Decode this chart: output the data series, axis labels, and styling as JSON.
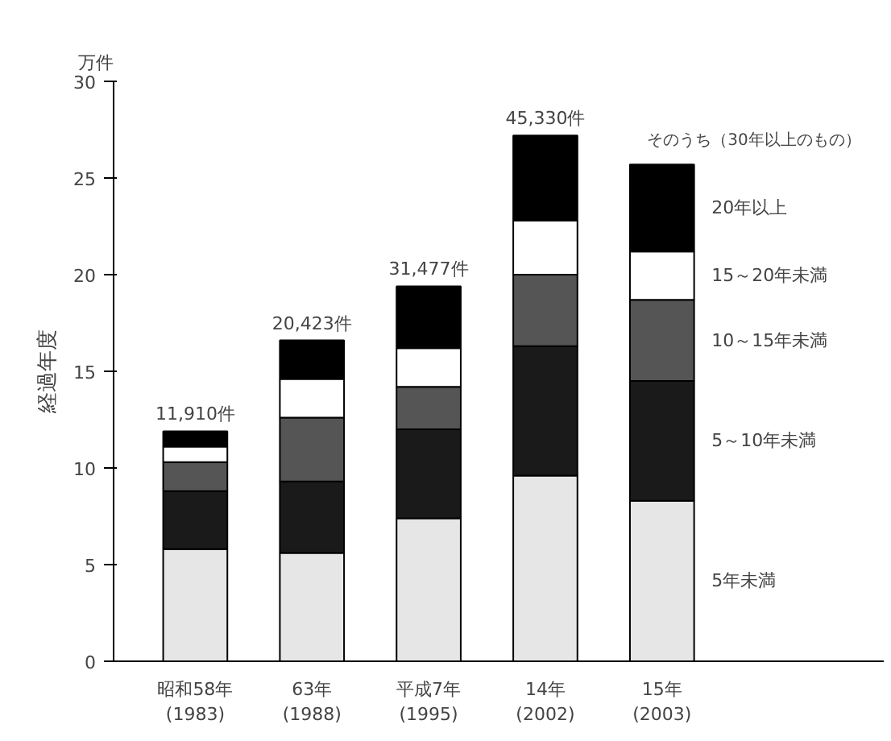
{
  "chart_data": {
    "type": "bar",
    "stacked": true,
    "ylabel": "経過年度",
    "annotations": [
      "万件",
      "そのうち（30年以上のもの）",
      {
        "text": "11,910件",
        "x": "昭和58年\n(1983)",
        "y": 11.9
      },
      {
        "text": "20,423件",
        "x": "63年\n(1988)",
        "y": 16.6
      },
      {
        "text": "31,477件",
        "x": "平成7年\n(1995)",
        "y": 19.4
      },
      {
        "text": "45,330件",
        "x": "14年\n(2002)",
        "y": 27.2
      }
    ],
    "categories": [
      "昭和58年\n(1983)",
      "63年\n(1988)",
      "平成7年\n(1995)",
      "14年\n(2002)",
      "15年\n(2003)"
    ],
    "series": [
      {
        "name": "5年未満",
        "color": "#e6e6e6",
        "values": [
          5.8,
          5.6,
          7.4,
          9.6,
          8.3
        ]
      },
      {
        "name": "5～10年未満",
        "color": "#1a1a1a",
        "values": [
          3.0,
          3.7,
          4.6,
          6.7,
          6.2
        ]
      },
      {
        "name": "10～15年未満",
        "color": "#555555",
        "values": [
          1.5,
          3.3,
          2.2,
          3.7,
          4.2
        ]
      },
      {
        "name": "15～20年未満",
        "color": "#ffffff",
        "values": [
          0.8,
          2.0,
          2.0,
          2.8,
          2.5
        ]
      },
      {
        "name": "20年以上",
        "color": "#000000",
        "values": [
          0.8,
          2.0,
          3.2,
          4.4,
          4.5
        ]
      }
    ],
    "ylim": [
      0,
      30
    ],
    "yticks": [
      0,
      5,
      10,
      15,
      20,
      25,
      30
    ],
    "grid": false,
    "legend": false
  }
}
